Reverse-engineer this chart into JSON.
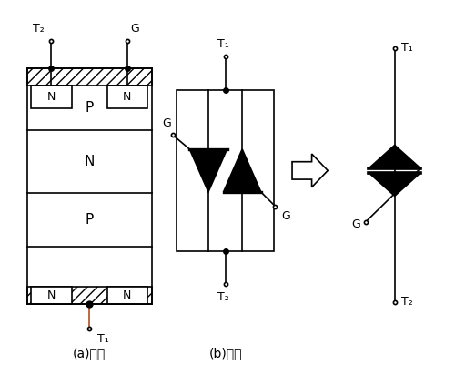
{
  "bg_color": "#ffffff",
  "line_color": "#000000",
  "label_a": "(a)结构",
  "label_b": "(b)电路",
  "T1": "T₁",
  "T2": "T₂",
  "G": "G",
  "fig_width": 5.0,
  "fig_height": 4.12
}
